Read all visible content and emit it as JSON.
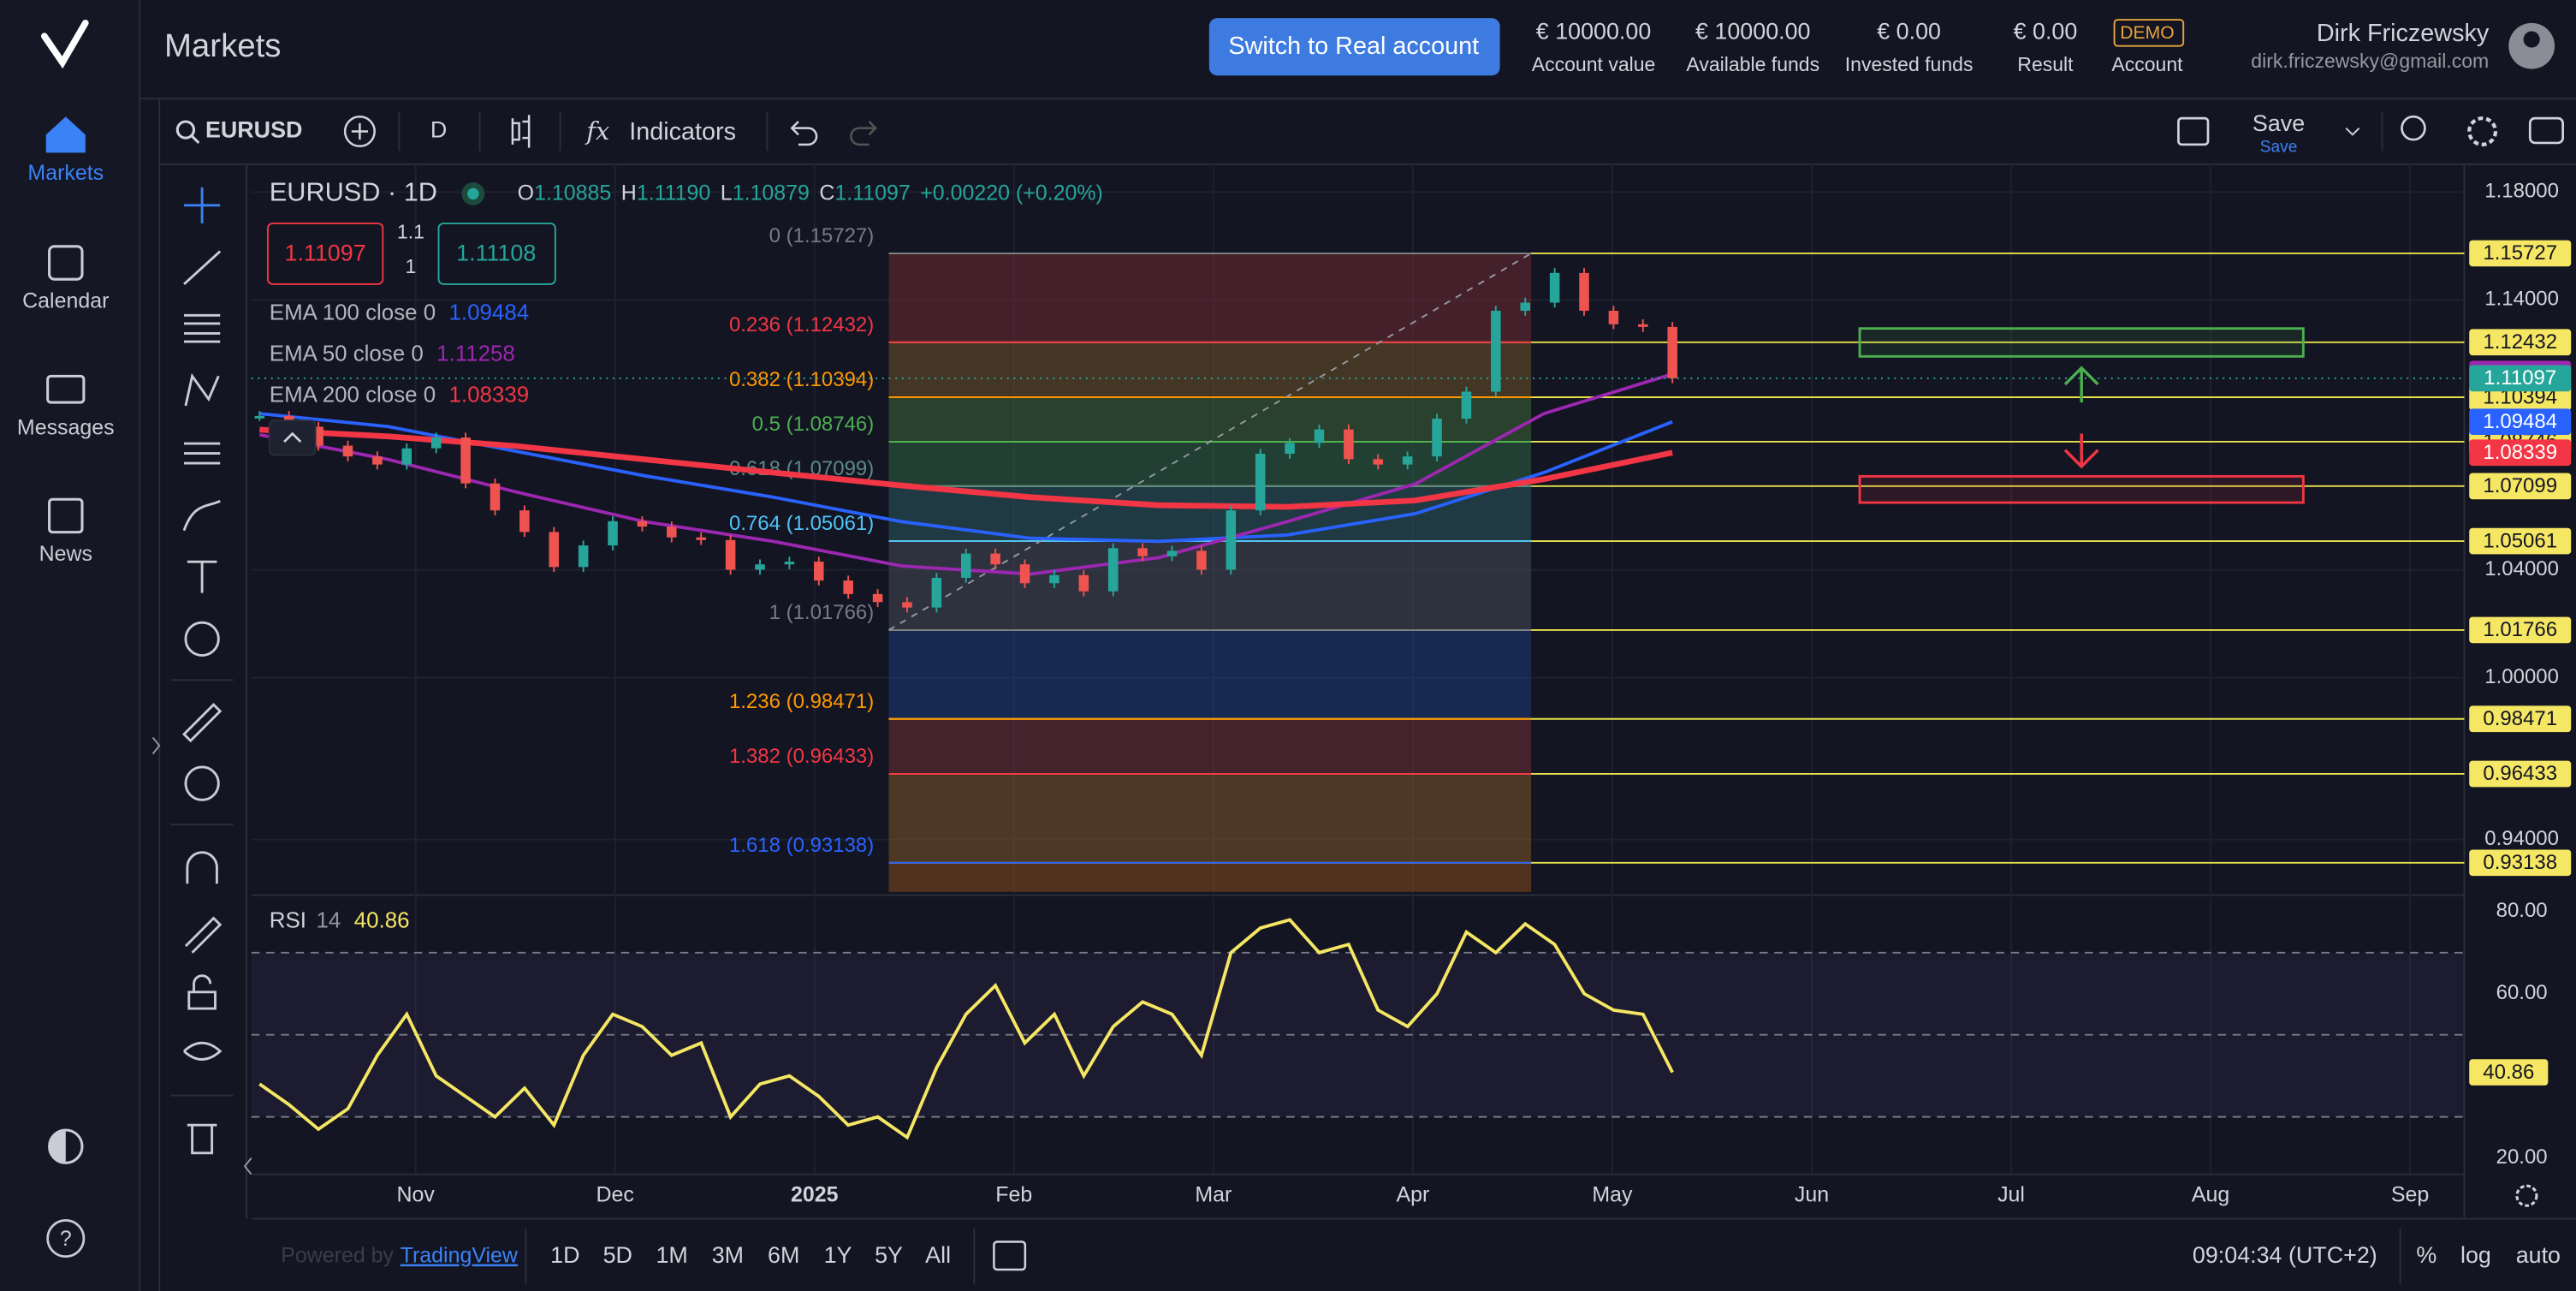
{
  "sidebar": {
    "items": [
      "Markets",
      "Calendar",
      "Messages",
      "News"
    ]
  },
  "header": {
    "title": "Markets",
    "button": "Switch to Real account",
    "stats": [
      {
        "value": "€ 10000.00",
        "label": "Account value"
      },
      {
        "value": "€ 10000.00",
        "label": "Available funds"
      },
      {
        "value": "€ 0.00",
        "label": "Invested funds"
      },
      {
        "value": "€ 0.00",
        "label": "Result"
      },
      {
        "value": "DEMO",
        "label": "Account"
      }
    ],
    "user": {
      "name": "Dirk Friczewsky",
      "email": "dirk.friczewsky@gmail.com"
    }
  },
  "toolbar": {
    "symbol": "EURUSD",
    "interval": "D",
    "indicators": "Indicators",
    "save": "Save",
    "save_sub": "Save"
  },
  "chart_data": [
    {
      "type": "candlestick",
      "title": "EURUSD · 1D",
      "ohlc": [
        {
          "key": "O",
          "text": "1.10885"
        },
        {
          "key": "H",
          "text": "1.11190"
        },
        {
          "key": "L",
          "text": "1.10879"
        },
        {
          "key": "C",
          "text": "1.11097"
        }
      ],
      "change": "+0.00220 (+0.20%)",
      "bid": 1.11097,
      "ask": 1.11108,
      "spread": [
        "1.1",
        "1"
      ],
      "last_price": 1.11097,
      "up_color": "#26a69a",
      "down_color": "#ef5350",
      "values": [
        1.097,
        1.093,
        1.086,
        1.082,
        1.079,
        1.085,
        1.089,
        1.072,
        1.062,
        1.054,
        1.041,
        1.049,
        1.058,
        1.056,
        1.052,
        1.051,
        1.04,
        1.042,
        1.043,
        1.036,
        1.031,
        1.028,
        1.026,
        1.037,
        1.046,
        1.042,
        1.035,
        1.038,
        1.032,
        1.048,
        1.045,
        1.047,
        1.04,
        1.062,
        1.083,
        1.087,
        1.092,
        1.081,
        1.079,
        1.082,
        1.096,
        1.106,
        1.136,
        1.139,
        1.15,
        1.136,
        1.131,
        1.13,
        1.11097
      ],
      "indicators": [
        {
          "name": "EMA 100 close 0",
          "last": 1.09484,
          "color": "#2962ff",
          "values": [
            1.0979,
            1.0931,
            1.0839,
            1.0748,
            1.0669,
            1.0578,
            1.0517,
            1.0505,
            1.0529,
            1.0608,
            1.076,
            1.09484
          ]
        },
        {
          "name": "EMA 50 close 0",
          "last": 1.11258,
          "color": "#9c27b0",
          "values": [
            1.09,
            1.0809,
            1.0688,
            1.0578,
            1.0505,
            1.0414,
            1.0384,
            1.0445,
            1.0578,
            1.0718,
            1.0979,
            1.11258
          ]
        },
        {
          "name": "EMA 200 close 0",
          "last": 1.08339,
          "color": "#f23645",
          "values": [
            1.0919,
            1.0894,
            1.0858,
            1.0809,
            1.076,
            1.0712,
            1.0669,
            1.0639,
            1.0633,
            1.0657,
            1.0736,
            1.08339
          ]
        }
      ],
      "fib_levels": [
        {
          "label": "0 (1.15727)",
          "price": 1.15727,
          "color": "#787b86",
          "fill": "#6e2a33"
        },
        {
          "label": "0.236 (1.12432)",
          "price": 1.12432,
          "color": "#f23645",
          "fill": "#6e5226"
        },
        {
          "label": "0.382 (1.10394)",
          "price": 1.10394,
          "color": "#ff9800",
          "fill": "#3c6636"
        },
        {
          "label": "0.5 (1.08746)",
          "price": 1.08746,
          "color": "#4caf50",
          "fill": "#2d6442"
        },
        {
          "label": "0.618 (1.07099)",
          "price": 1.07099,
          "color": "#5d8a86",
          "fill": "#29595e"
        },
        {
          "label": "0.764 (1.05061)",
          "price": 1.05061,
          "color": "#4fc3f7",
          "fill": "#464a56"
        },
        {
          "label": "1 (1.01766)",
          "price": 1.01766,
          "color": "#787b86",
          "fill": "#1d3a78"
        },
        {
          "label": "1.236 (0.98471)",
          "price": 0.98471,
          "color": "#ff9800",
          "fill": "#6e2f36"
        },
        {
          "label": "1.382 (0.96433)",
          "price": 0.96433,
          "color": "#f23645",
          "fill": "#7d5428"
        },
        {
          "label": "1.618 (0.93138)",
          "price": 0.93138,
          "color": "#2962ff",
          "fill": "#844a1c"
        }
      ],
      "ylim": [
        0.9206,
        1.1903
      ],
      "yticks": [
        {
          "value": 1.18,
          "label": "1.18000"
        },
        {
          "value": 1.14,
          "label": "1.14000"
        },
        {
          "value": 1.04,
          "label": "1.04000"
        },
        {
          "value": 1.0,
          "label": "1.00000"
        },
        {
          "value": 0.94,
          "label": "0.94000"
        }
      ],
      "x_labels": [
        "Nov",
        "Dec",
        "2025",
        "Feb",
        "Mar",
        "Apr",
        "May",
        "Jun",
        "Jul",
        "Aug",
        "Sep"
      ],
      "grid": true
    },
    {
      "type": "line",
      "title": "RSI",
      "params": "14",
      "last": 40.86,
      "color": "#f5e663",
      "values": [
        38,
        33,
        27,
        32,
        45,
        55,
        40,
        35,
        30,
        37,
        28,
        45,
        55,
        52,
        45,
        48,
        30,
        38,
        40,
        35,
        28,
        30,
        25,
        42,
        55,
        62,
        48,
        55,
        40,
        52,
        58,
        55,
        45,
        70,
        76,
        78,
        70,
        72,
        56,
        52,
        60,
        75,
        70,
        77,
        72,
        60,
        56,
        55,
        40.86
      ],
      "ylim": [
        16,
        84
      ],
      "yticks": [
        {
          "value": 80,
          "label": "80.00"
        },
        {
          "value": 60,
          "label": "60.00"
        },
        {
          "value": 20,
          "label": "20.00"
        }
      ],
      "bands": [
        70,
        50,
        30
      ]
    }
  ],
  "footer": {
    "powered": "Powered by",
    "brand": "TradingView",
    "ranges": [
      "1D",
      "5D",
      "1M",
      "3M",
      "6M",
      "1Y",
      "5Y",
      "All"
    ],
    "time": "09:04:34 (UTC+2)",
    "options": [
      "%",
      "log",
      "auto"
    ]
  }
}
